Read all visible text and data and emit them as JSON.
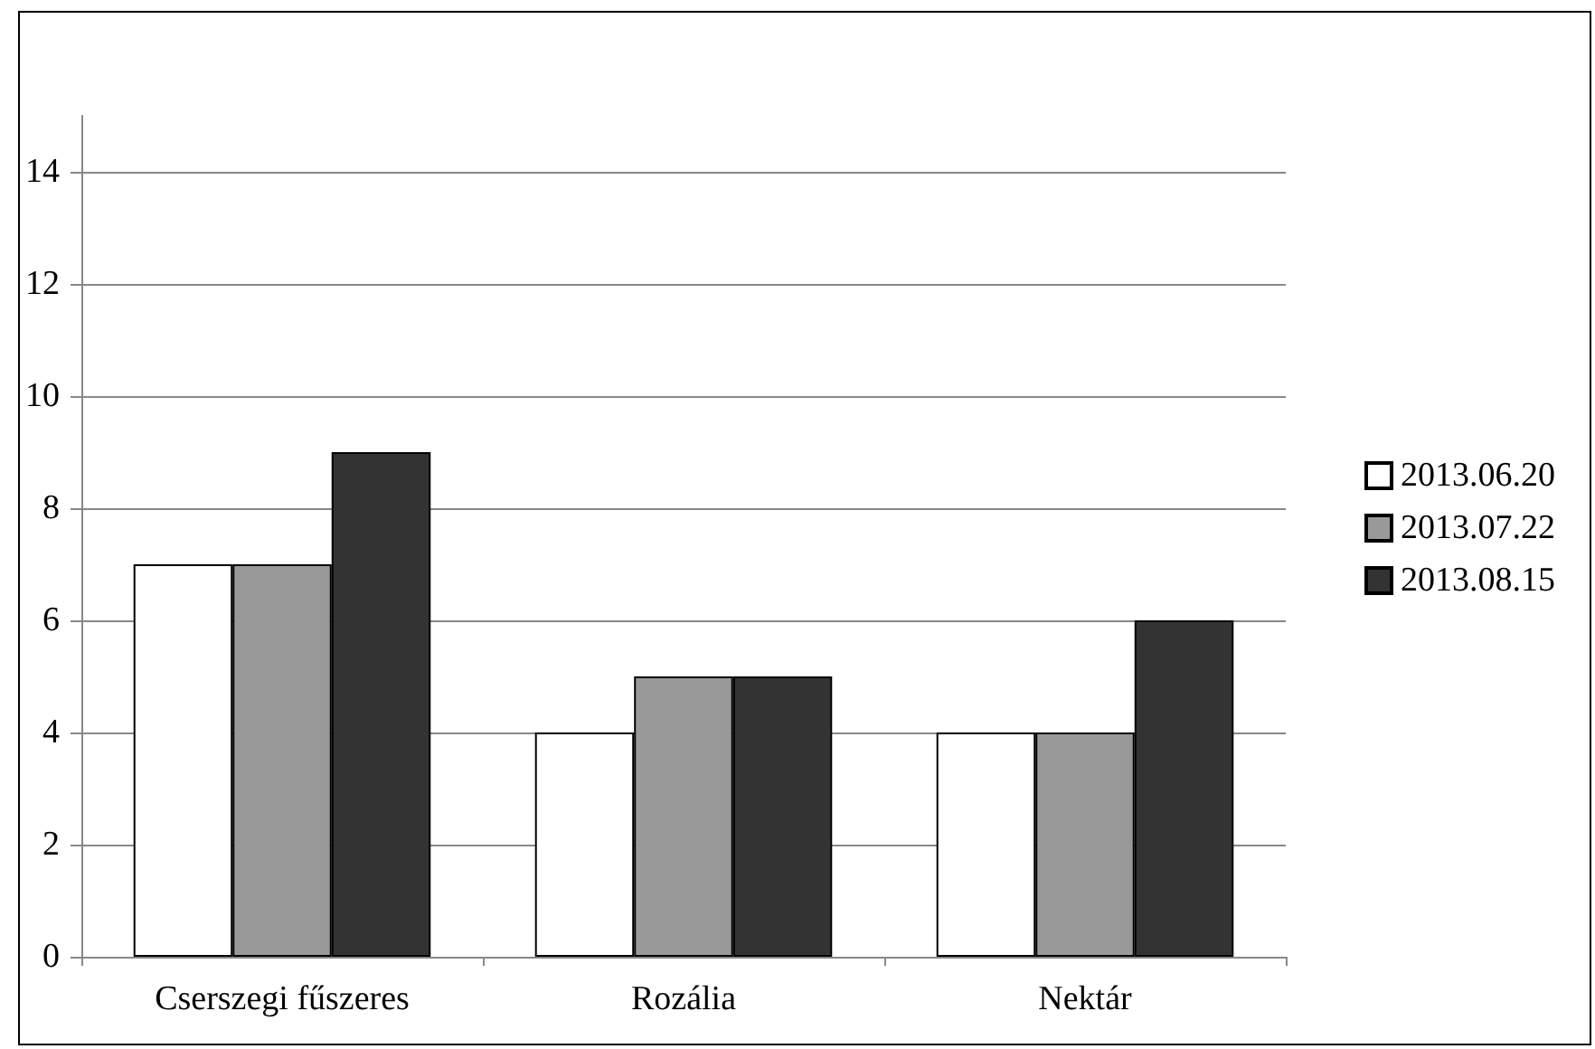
{
  "chart_data": {
    "type": "bar",
    "categories": [
      "Cserszegi fűszeres",
      "Rozália",
      "Nektár"
    ],
    "series": [
      {
        "name": "2013.06.20",
        "color": "#ffffff",
        "values": [
          7,
          4,
          4
        ]
      },
      {
        "name": "2013.07.22",
        "color": "#999999",
        "values": [
          7,
          5,
          4
        ]
      },
      {
        "name": "2013.08.15",
        "color": "#333333",
        "values": [
          9,
          5,
          6
        ]
      }
    ],
    "ylim": [
      0,
      15
    ],
    "yticks": [
      0,
      2,
      4,
      6,
      8,
      10,
      12,
      14
    ],
    "grid": "y",
    "legend": "right"
  }
}
